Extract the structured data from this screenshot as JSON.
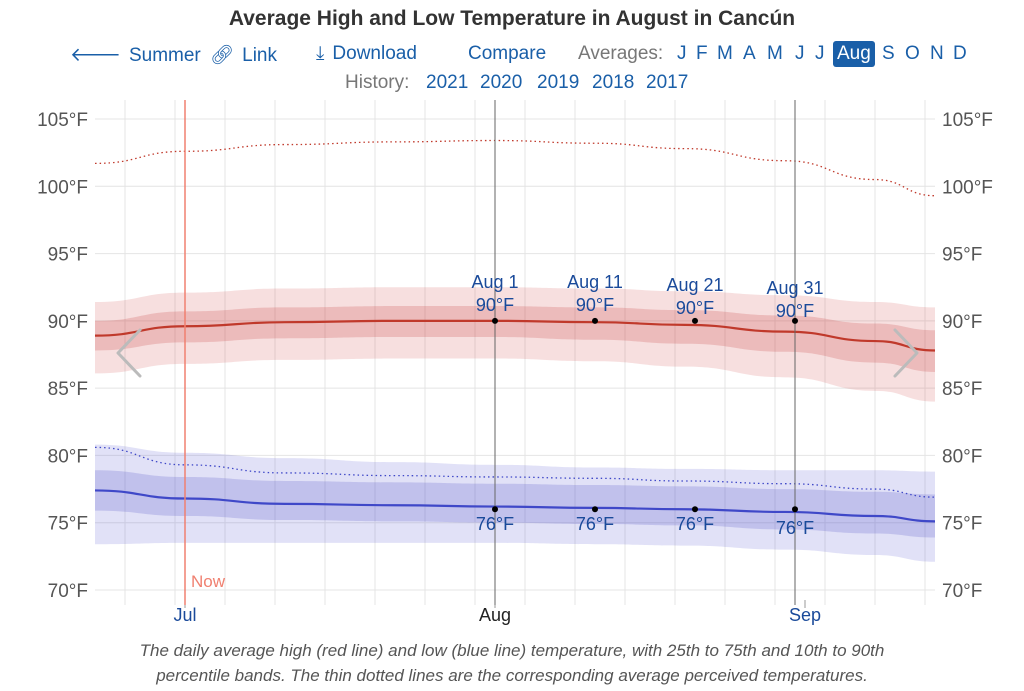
{
  "title": "Average High and Low Temperature in August in Cancún",
  "nav": {
    "summer": {
      "label": "Summer",
      "icon": "arrow-left-icon"
    },
    "link": {
      "label": "Link",
      "icon": "link-icon"
    },
    "download": {
      "label": "Download",
      "icon": "download-icon"
    },
    "compare": {
      "label": "Compare"
    },
    "averages_label": "Averages:",
    "months": [
      "J",
      "F",
      "M",
      "A",
      "M",
      "J",
      "J",
      "Aug",
      "S",
      "O",
      "N",
      "D"
    ],
    "selected_month_index": 7
  },
  "history": {
    "label": "History:",
    "years": [
      "2021",
      "2020",
      "2019",
      "2018",
      "2017"
    ]
  },
  "now_label": "Now",
  "caption": {
    "line1": "The daily average high (red line) and low (blue line) temperature, with 25th to 75th and 10th to 90th",
    "line2": "percentile bands. The thin dotted lines are the corresponding average perceived temperatures."
  },
  "colors": {
    "accent": "#1a5fa8",
    "high_line": "#c0392b",
    "low_line": "#3f48c8",
    "now_line": "#f08070"
  },
  "chart_data": {
    "type": "line",
    "title": "Average High and Low Temperature in August in Cancún",
    "xlabel": "",
    "ylabel": "",
    "y_ticks": [
      "70°F",
      "75°F",
      "80°F",
      "85°F",
      "90°F",
      "95°F",
      "100°F",
      "105°F"
    ],
    "ylim": [
      70,
      106
    ],
    "x_tick_labels": [
      {
        "label": "Jul",
        "day": 0
      },
      {
        "label": "Aug",
        "day": 31
      },
      {
        "label": "Sep",
        "day": 62
      }
    ],
    "xlim_days": [
      -9,
      75
    ],
    "now_day": 0,
    "x_days": [
      -9,
      0,
      10,
      21,
      31,
      41,
      50,
      60,
      69,
      75
    ],
    "series": [
      {
        "name": "Average high",
        "values": [
          88.9,
          89.6,
          89.9,
          90.0,
          90.0,
          89.9,
          89.7,
          89.2,
          88.5,
          87.8
        ]
      },
      {
        "name": "High 25th percentile",
        "values": [
          87.8,
          88.4,
          88.7,
          88.8,
          88.8,
          88.6,
          88.3,
          87.7,
          86.9,
          86.2
        ]
      },
      {
        "name": "High 75th percentile",
        "values": [
          90.0,
          90.7,
          91.0,
          91.1,
          91.1,
          91.0,
          90.8,
          90.4,
          89.8,
          89.3
        ]
      },
      {
        "name": "High 10th percentile",
        "values": [
          86.1,
          86.8,
          87.1,
          87.2,
          87.2,
          87.0,
          86.6,
          85.8,
          84.8,
          84.0
        ]
      },
      {
        "name": "High 90th percentile",
        "values": [
          91.4,
          92.1,
          92.4,
          92.5,
          92.5,
          92.4,
          92.2,
          91.9,
          91.4,
          91.0
        ]
      },
      {
        "name": "Perceived high",
        "values": [
          101.7,
          102.6,
          103.1,
          103.3,
          103.4,
          103.2,
          102.8,
          101.9,
          100.5,
          99.3
        ]
      },
      {
        "name": "Average low",
        "values": [
          77.4,
          76.8,
          76.4,
          76.3,
          76.2,
          76.1,
          76.0,
          75.8,
          75.5,
          75.1
        ]
      },
      {
        "name": "Low 25th percentile",
        "values": [
          75.9,
          75.5,
          75.2,
          75.1,
          75.0,
          74.9,
          74.8,
          74.5,
          74.2,
          73.9
        ]
      },
      {
        "name": "Low 75th percentile",
        "values": [
          78.9,
          78.4,
          78.1,
          78.0,
          77.9,
          77.8,
          77.7,
          77.5,
          77.3,
          77.1
        ]
      },
      {
        "name": "Low 10th percentile",
        "values": [
          73.4,
          73.5,
          73.5,
          73.5,
          73.5,
          73.4,
          73.3,
          73.0,
          72.6,
          72.1
        ]
      },
      {
        "name": "Low 90th percentile",
        "values": [
          80.8,
          80.2,
          79.8,
          79.5,
          79.3,
          79.1,
          79.0,
          78.9,
          78.9,
          78.8
        ]
      },
      {
        "name": "Perceived low",
        "values": [
          80.6,
          79.3,
          78.7,
          78.5,
          78.4,
          78.3,
          78.1,
          77.9,
          77.5,
          76.9
        ]
      }
    ],
    "annotations": [
      {
        "date": "Aug 1",
        "day": 31,
        "high": 90,
        "low": 76,
        "high_label": "90°F",
        "low_label": "76°F"
      },
      {
        "date": "Aug 11",
        "day": 41,
        "high": 90,
        "low": 76,
        "high_label": "90°F",
        "low_label": "76°F"
      },
      {
        "date": "Aug 21",
        "day": 51,
        "high": 90,
        "low": 76,
        "high_label": "90°F",
        "low_label": "76°F"
      },
      {
        "date": "Aug 31",
        "day": 61,
        "high": 90,
        "low": 76,
        "high_label": "90°F",
        "low_label": "76°F"
      }
    ],
    "grid": true,
    "legend": "none"
  }
}
